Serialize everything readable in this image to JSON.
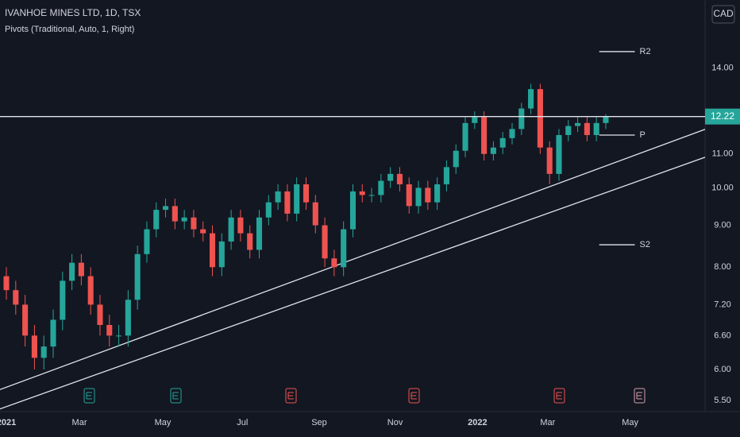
{
  "chart_data": {
    "type": "candlestick",
    "title": "IVANHOE MINES LTD, 1D, TSX",
    "subtitle": "Pivots (Traditional, Auto, 1, Right)",
    "currency": "CAD",
    "log_scale": true,
    "up_color": "#26a69a",
    "down_color": "#ef5350",
    "open": [
      7.8,
      7.5,
      7.2,
      6.6,
      6.2,
      6.4,
      6.9,
      7.7,
      8.1,
      7.8,
      7.2,
      6.8,
      6.6,
      6.6,
      7.3,
      8.3,
      8.9,
      9.4,
      9.5,
      9.1,
      9.2,
      8.9,
      8.8,
      8.0,
      8.6,
      9.2,
      8.8,
      8.4,
      9.2,
      9.6,
      9.9,
      9.3,
      10.1,
      9.6,
      9.0,
      8.2,
      8.0,
      8.9,
      9.9,
      9.8,
      9.8,
      10.2,
      10.4,
      10.1,
      9.5,
      10.0,
      9.6,
      10.1,
      10.6,
      11.1,
      12.0,
      12.2,
      11.0,
      11.2,
      11.5,
      11.8,
      12.5,
      13.2,
      11.2,
      10.4,
      11.6,
      11.9,
      12.0,
      11.6,
      12.0
    ],
    "high": [
      8.0,
      7.7,
      7.4,
      6.8,
      6.6,
      7.1,
      7.9,
      8.3,
      8.3,
      8.0,
      7.4,
      7.0,
      6.8,
      7.5,
      8.5,
      9.1,
      9.6,
      9.7,
      9.7,
      9.4,
      9.4,
      9.1,
      9.0,
      8.8,
      9.4,
      9.4,
      9.0,
      9.4,
      9.8,
      10.1,
      10.1,
      10.3,
      10.3,
      9.8,
      9.2,
      8.4,
      9.1,
      10.1,
      10.1,
      10.0,
      10.4,
      10.6,
      10.6,
      10.3,
      10.2,
      10.2,
      10.3,
      10.8,
      11.3,
      12.2,
      12.4,
      12.4,
      11.4,
      11.7,
      12.0,
      12.7,
      13.4,
      13.4,
      11.4,
      11.8,
      12.1,
      12.2,
      12.2,
      12.2,
      12.3
    ],
    "low": [
      7.3,
      7.0,
      6.4,
      6.0,
      6.0,
      6.2,
      6.7,
      7.5,
      7.6,
      7.0,
      6.6,
      6.4,
      6.4,
      6.4,
      7.1,
      8.1,
      8.7,
      9.2,
      8.9,
      8.9,
      8.7,
      8.6,
      7.8,
      7.8,
      8.4,
      8.6,
      8.2,
      8.2,
      9.0,
      9.4,
      9.1,
      9.1,
      9.4,
      8.8,
      8.0,
      7.8,
      7.8,
      8.7,
      9.6,
      9.6,
      9.6,
      10.0,
      9.9,
      9.3,
      9.3,
      9.4,
      9.4,
      9.9,
      10.4,
      10.9,
      11.8,
      10.8,
      10.8,
      11.0,
      11.3,
      11.6,
      12.3,
      11.0,
      10.1,
      10.2,
      11.4,
      11.7,
      11.4,
      11.4,
      11.8
    ],
    "close": [
      7.5,
      7.2,
      6.6,
      6.2,
      6.4,
      6.9,
      7.7,
      8.1,
      7.8,
      7.2,
      6.8,
      6.6,
      6.6,
      7.3,
      8.3,
      8.9,
      9.4,
      9.5,
      9.1,
      9.2,
      8.9,
      8.8,
      8.0,
      8.6,
      9.2,
      8.8,
      8.4,
      9.2,
      9.6,
      9.9,
      9.3,
      10.1,
      9.6,
      9.0,
      8.2,
      8.0,
      8.9,
      9.9,
      9.8,
      9.8,
      10.2,
      10.4,
      10.1,
      9.5,
      10.0,
      9.6,
      10.1,
      10.6,
      11.1,
      12.0,
      12.2,
      11.0,
      11.2,
      11.5,
      11.8,
      12.5,
      13.2,
      11.2,
      10.4,
      11.6,
      11.9,
      12.0,
      11.6,
      12.0,
      12.22
    ],
    "xlim": [
      -0.68,
      74.6
    ],
    "xticks": [
      {
        "value": 0,
        "label": "2021"
      },
      {
        "value": 7.8,
        "label": "Mar"
      },
      {
        "value": 16.7,
        "label": "May"
      },
      {
        "value": 25.2,
        "label": "Jul"
      },
      {
        "value": 33.4,
        "label": "Sep"
      },
      {
        "value": 41.5,
        "label": "Nov"
      },
      {
        "value": 50.3,
        "label": "2022"
      },
      {
        "value": 57.8,
        "label": "Mar"
      },
      {
        "value": 66.6,
        "label": "May"
      }
    ],
    "ylim": [
      5.33,
      16.96
    ],
    "yticks": [
      {
        "value": 5.5,
        "label": "5.50"
      },
      {
        "value": 6,
        "label": "6.00"
      },
      {
        "value": 6.6,
        "label": "6.60"
      },
      {
        "value": 7.2,
        "label": "7.20"
      },
      {
        "value": 8,
        "label": "8.00"
      },
      {
        "value": 9,
        "label": "9.00"
      },
      {
        "value": 10,
        "label": "10.00"
      },
      {
        "value": 11,
        "label": "11.00"
      },
      {
        "value": 14,
        "label": "14.00"
      }
    ],
    "pivot_range": [
      63.3,
      67.1
    ],
    "pivots": [
      {
        "label": "R2",
        "value": 14.67
      },
      {
        "label": "P",
        "value": 11.6
      },
      {
        "label": "S2",
        "value": 8.52
      }
    ],
    "trendlines": [
      {
        "x": [
          -0.68,
          74.6
        ],
        "y": [
          5.67,
          11.79
        ]
      },
      {
        "x": [
          -0.68,
          74.6
        ],
        "y": [
          5.37,
          10.9
        ]
      }
    ]
  }
}
